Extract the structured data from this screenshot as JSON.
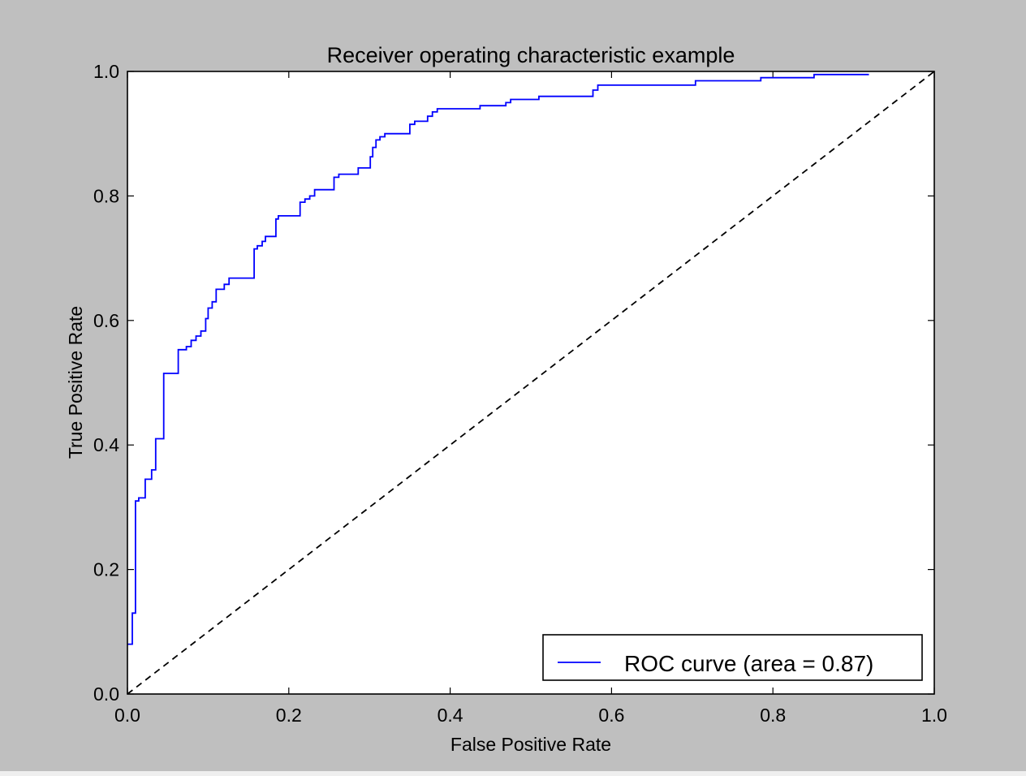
{
  "chart_data": {
    "type": "line",
    "title": "Receiver operating characteristic example",
    "xlabel": "False Positive Rate",
    "ylabel": "True Positive Rate",
    "xlim": [
      0.0,
      1.0
    ],
    "ylim": [
      0.0,
      1.0
    ],
    "xticks": [
      "0.0",
      "0.2",
      "0.4",
      "0.6",
      "0.8",
      "1.0"
    ],
    "yticks": [
      "0.0",
      "0.2",
      "0.4",
      "0.6",
      "0.8",
      "1.0"
    ],
    "grid": false,
    "legend_position": "lower-right",
    "background": "#bfbfbf",
    "series": [
      {
        "name": "ROC curve (area = 0.87)",
        "color": "#0000ff",
        "style": "solid",
        "x": [
          0.0,
          0.006,
          0.006,
          0.01,
          0.01,
          0.014,
          0.014,
          0.018,
          0.018,
          0.022,
          0.022,
          0.026,
          0.026,
          0.03,
          0.03,
          0.035,
          0.035,
          0.045,
          0.045,
          0.063,
          0.063,
          0.073,
          0.073,
          0.079,
          0.079,
          0.085,
          0.085,
          0.091,
          0.091,
          0.097,
          0.097,
          0.1,
          0.1,
          0.105,
          0.105,
          0.11,
          0.11,
          0.12,
          0.12,
          0.126,
          0.126,
          0.157,
          0.157,
          0.161,
          0.161,
          0.167,
          0.167,
          0.171,
          0.171,
          0.184,
          0.184,
          0.187,
          0.187,
          0.192,
          0.192,
          0.214,
          0.214,
          0.22,
          0.22,
          0.226,
          0.226,
          0.232,
          0.232,
          0.256,
          0.256,
          0.262,
          0.262,
          0.286,
          0.286,
          0.301,
          0.301,
          0.304,
          0.304,
          0.308,
          0.308,
          0.313,
          0.313,
          0.319,
          0.319,
          0.35,
          0.35,
          0.356,
          0.356,
          0.372,
          0.372,
          0.378,
          0.378,
          0.384,
          0.384,
          0.437,
          0.437,
          0.469,
          0.469,
          0.475,
          0.475,
          0.51,
          0.51,
          0.577,
          0.577,
          0.583,
          0.583,
          0.704,
          0.704,
          0.785,
          0.785,
          0.851,
          0.851,
          0.919
        ],
        "y": [
          0.08,
          0.08,
          0.13,
          0.13,
          0.31,
          0.31,
          0.315,
          0.315,
          0.315,
          0.315,
          0.345,
          0.345,
          0.345,
          0.345,
          0.36,
          0.36,
          0.41,
          0.41,
          0.515,
          0.515,
          0.553,
          0.553,
          0.558,
          0.558,
          0.568,
          0.568,
          0.575,
          0.575,
          0.583,
          0.583,
          0.603,
          0.603,
          0.62,
          0.62,
          0.63,
          0.63,
          0.65,
          0.65,
          0.658,
          0.658,
          0.668,
          0.668,
          0.715,
          0.715,
          0.72,
          0.72,
          0.727,
          0.727,
          0.735,
          0.735,
          0.763,
          0.763,
          0.768,
          0.768,
          0.768,
          0.768,
          0.79,
          0.79,
          0.795,
          0.795,
          0.8,
          0.8,
          0.81,
          0.81,
          0.83,
          0.83,
          0.835,
          0.835,
          0.845,
          0.845,
          0.863,
          0.863,
          0.878,
          0.878,
          0.89,
          0.89,
          0.895,
          0.895,
          0.9,
          0.9,
          0.915,
          0.915,
          0.92,
          0.92,
          0.928,
          0.928,
          0.935,
          0.935,
          0.94,
          0.94,
          0.945,
          0.945,
          0.95,
          0.95,
          0.955,
          0.955,
          0.96,
          0.96,
          0.97,
          0.97,
          0.978,
          0.978,
          0.985,
          0.985,
          0.99,
          0.99,
          0.995,
          0.995
        ]
      },
      {
        "name": "",
        "color": "#000000",
        "style": "dashed",
        "x": [
          0.0,
          1.0
        ],
        "y": [
          0.0,
          1.0
        ]
      }
    ]
  }
}
